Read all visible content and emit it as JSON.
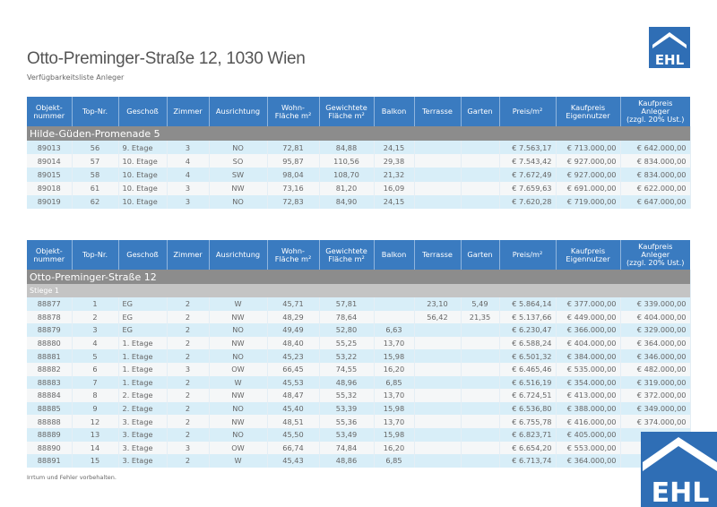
{
  "header": {
    "title": "Otto-Preminger-Straße 12, 1030 Wien",
    "subtitle": "Verfügbarkeitsliste Anleger",
    "logo_text": "EHL",
    "brand_color": "#2f6eb5"
  },
  "columns": [
    "Objekt-\nnummer",
    "Top-Nr.",
    "Geschoß",
    "Zimmer",
    "Ausrichtung",
    "Wohn-\nFläche m²",
    "Gewichtete\nFläche m²",
    "Balkon",
    "Terrasse",
    "Garten",
    "Preis/m²",
    "Kaufpreis\nEigennutzer",
    "Kaufpreis\nAnleger\n(zzgl. 20% Ust.)"
  ],
  "tables": [
    {
      "group": "Hilde-Güden-Promenade 5",
      "subgroup": null,
      "rows": [
        [
          "89013",
          "56",
          "9. Etage",
          "3",
          "NO",
          "72,81",
          "84,88",
          "24,15",
          "",
          "",
          "€ 7.563,17",
          "€ 713.000,00",
          "€ 642.000,00"
        ],
        [
          "89014",
          "57",
          "10. Etage",
          "4",
          "SO",
          "95,87",
          "110,56",
          "29,38",
          "",
          "",
          "€ 7.543,42",
          "€ 927.000,00",
          "€ 834.000,00"
        ],
        [
          "89015",
          "58",
          "10. Etage",
          "4",
          "SW",
          "98,04",
          "108,70",
          "21,32",
          "",
          "",
          "€ 7.672,49",
          "€ 927.000,00",
          "€ 834.000,00"
        ],
        [
          "89018",
          "61",
          "10. Etage",
          "3",
          "NW",
          "73,16",
          "81,20",
          "16,09",
          "",
          "",
          "€ 7.659,63",
          "€ 691.000,00",
          "€ 622.000,00"
        ],
        [
          "89019",
          "62",
          "10. Etage",
          "3",
          "NO",
          "72,83",
          "84,90",
          "24,15",
          "",
          "",
          "€ 7.620,28",
          "€ 719.000,00",
          "€ 647.000,00"
        ]
      ]
    },
    {
      "group": "Otto-Preminger-Straße 12",
      "subgroup": "Stiege 1",
      "rows": [
        [
          "88877",
          "1",
          "EG",
          "2",
          "W",
          "45,71",
          "57,81",
          "",
          "23,10",
          "5,49",
          "€ 5.864,14",
          "€ 377.000,00",
          "€ 339.000,00"
        ],
        [
          "88878",
          "2",
          "EG",
          "2",
          "NW",
          "48,29",
          "78,64",
          "",
          "56,42",
          "21,35",
          "€ 5.137,66",
          "€ 449.000,00",
          "€ 404.000,00"
        ],
        [
          "88879",
          "3",
          "EG",
          "2",
          "NO",
          "49,49",
          "52,80",
          "6,63",
          "",
          "",
          "€ 6.230,47",
          "€ 366.000,00",
          "€ 329.000,00"
        ],
        [
          "88880",
          "4",
          "1. Etage",
          "2",
          "NW",
          "48,40",
          "55,25",
          "13,70",
          "",
          "",
          "€ 6.588,24",
          "€ 404.000,00",
          "€ 364.000,00"
        ],
        [
          "88881",
          "5",
          "1. Etage",
          "2",
          "NO",
          "45,23",
          "53,22",
          "15,98",
          "",
          "",
          "€ 6.501,32",
          "€ 384.000,00",
          "€ 346.000,00"
        ],
        [
          "88882",
          "6",
          "1. Etage",
          "3",
          "OW",
          "66,45",
          "74,55",
          "16,20",
          "",
          "",
          "€ 6.465,46",
          "€ 535.000,00",
          "€ 482.000,00"
        ],
        [
          "88883",
          "7",
          "1. Etage",
          "2",
          "W",
          "45,53",
          "48,96",
          "6,85",
          "",
          "",
          "€ 6.516,19",
          "€ 354.000,00",
          "€ 319.000,00"
        ],
        [
          "88884",
          "8",
          "2. Etage",
          "2",
          "NW",
          "48,47",
          "55,32",
          "13,70",
          "",
          "",
          "€ 6.724,51",
          "€ 413.000,00",
          "€ 372.000,00"
        ],
        [
          "88885",
          "9",
          "2. Etage",
          "2",
          "NO",
          "45,40",
          "53,39",
          "15,98",
          "",
          "",
          "€ 6.536,80",
          "€ 388.000,00",
          "€ 349.000,00"
        ],
        [
          "88888",
          "12",
          "3. Etage",
          "2",
          "NW",
          "48,51",
          "55,36",
          "13,70",
          "",
          "",
          "€ 6.755,78",
          "€ 416.000,00",
          "€ 374.000,00"
        ],
        [
          "88889",
          "13",
          "3. Etage",
          "2",
          "NO",
          "45,50",
          "53,49",
          "15,98",
          "",
          "",
          "€ 6.823,71",
          "€ 405.000,00",
          "€"
        ],
        [
          "88890",
          "14",
          "3. Etage",
          "3",
          "OW",
          "66,74",
          "74,84",
          "16,20",
          "",
          "",
          "€ 6.654,20",
          "€ 553.000,00",
          "€"
        ],
        [
          "88891",
          "15",
          "3. Etage",
          "2",
          "W",
          "45,43",
          "48,86",
          "6,85",
          "",
          "",
          "€ 6.713,74",
          "€ 364.000,00",
          "€"
        ]
      ]
    }
  ],
  "footer": {
    "disclaimer": "Irrtum und Fehler vorbehalten."
  }
}
